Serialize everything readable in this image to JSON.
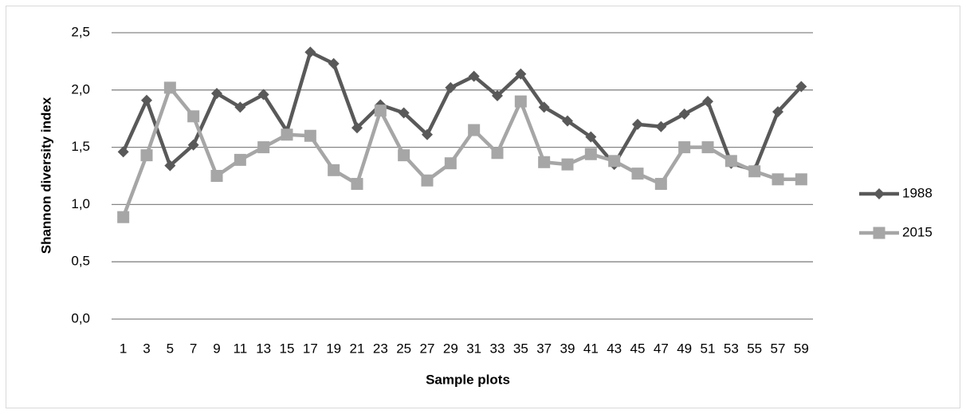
{
  "chart_data": {
    "type": "line",
    "x_label": "Sample plots",
    "y_label": "Shannon diversity index",
    "categories": [
      "1",
      "3",
      "5",
      "7",
      "9",
      "11",
      "13",
      "15",
      "17",
      "19",
      "21",
      "23",
      "25",
      "27",
      "29",
      "31",
      "33",
      "35",
      "37",
      "39",
      "41",
      "43",
      "45",
      "47",
      "49",
      "51",
      "53",
      "55",
      "57",
      "59"
    ],
    "series": [
      {
        "name": "1988",
        "color": "#595959",
        "marker": "diamond",
        "values": [
          1.46,
          1.91,
          1.34,
          1.52,
          1.97,
          1.85,
          1.96,
          1.64,
          2.33,
          2.23,
          1.67,
          1.87,
          1.8,
          1.61,
          2.02,
          2.12,
          1.95,
          2.14,
          1.85,
          1.73,
          1.59,
          1.35,
          1.7,
          1.68,
          1.79,
          1.9,
          1.36,
          1.3,
          1.81,
          2.03
        ]
      },
      {
        "name": "2015",
        "color": "#a6a6a6",
        "marker": "square",
        "values": [
          0.89,
          1.43,
          2.02,
          1.77,
          1.25,
          1.39,
          1.5,
          1.61,
          1.6,
          1.3,
          1.18,
          1.82,
          1.43,
          1.21,
          1.36,
          1.65,
          1.45,
          1.9,
          1.37,
          1.35,
          1.44,
          1.38,
          1.27,
          1.18,
          1.5,
          1.5,
          1.38,
          1.29,
          1.22,
          1.22
        ]
      }
    ],
    "ylim": [
      0,
      2.5
    ],
    "yticks": [
      {
        "value": 0,
        "label": "0,0"
      },
      {
        "value": 0.5,
        "label": "0,5"
      },
      {
        "value": 1,
        "label": "1,0"
      },
      {
        "value": 1.5,
        "label": "1,5"
      },
      {
        "value": 2,
        "label": "2,0"
      },
      {
        "value": 2.5,
        "label": "2,5"
      }
    ],
    "grid": true,
    "legend": "right"
  }
}
